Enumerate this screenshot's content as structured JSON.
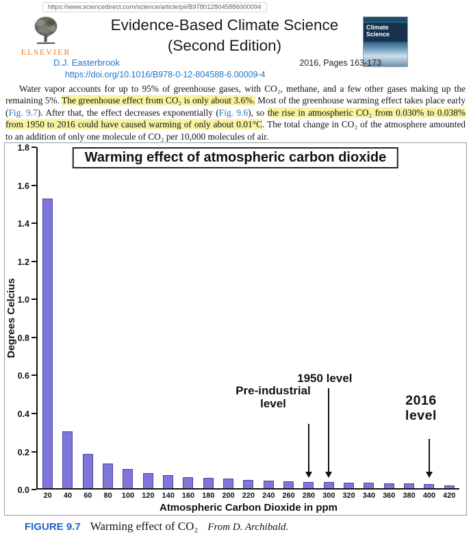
{
  "page": {
    "url": "https://www.sciencedirect.com/science/article/pii/B9780128045886000094"
  },
  "header": {
    "publisher": "ELSEVIER",
    "title": "Evidence-Based Climate Science (Second Edition)",
    "cover_title": "Climate Science",
    "author": "D.J. Easterbrook",
    "pub_info": "2016, Pages 163-173",
    "doi": "https://doi.org/10.1016/B978-0-12-804588-6.00009-4"
  },
  "paragraph": {
    "segments": [
      {
        "type": "normal",
        "text": "Water vapor accounts for up to 95% of greenhouse gases, with CO₂, methane, and a few other gases making up the remaining 5%. "
      },
      {
        "type": "highlight",
        "text": "The greenhouse effect from CO₂ is only about 3.6%."
      },
      {
        "type": "normal",
        "text": " Most of the greenhouse warming effect takes place early ("
      },
      {
        "type": "link",
        "text": "Fig. 9.7"
      },
      {
        "type": "normal",
        "text": "). After that, the effect decreases exponentially ("
      },
      {
        "type": "link",
        "text": "Fig. 9.6"
      },
      {
        "type": "normal",
        "text": "), so "
      },
      {
        "type": "highlight",
        "text": "the rise in atmospheric CO₂ from 0.030% to 0.038% from 1950 to 2016 could have caused warming of only about 0.01°C"
      },
      {
        "type": "normal",
        "text": ". The total change in CO₂ of the atmosphere amounted to an addition of only one molecule of CO₂ per 10,000 molecules of air."
      }
    ]
  },
  "chart_data": {
    "type": "bar",
    "title": "Warming effect of atmospheric carbon dioxide",
    "xlabel": "Atmospheric Carbon Dioxide in ppm",
    "ylabel": "Degrees Celcius",
    "categories": [
      20,
      40,
      60,
      80,
      100,
      120,
      140,
      160,
      180,
      200,
      220,
      240,
      260,
      280,
      300,
      320,
      340,
      360,
      380,
      400,
      420
    ],
    "values": [
      1.53,
      0.3,
      0.18,
      0.13,
      0.1,
      0.08,
      0.07,
      0.06,
      0.055,
      0.05,
      0.045,
      0.04,
      0.035,
      0.033,
      0.032,
      0.03,
      0.028,
      0.025,
      0.024,
      0.022,
      0.014
    ],
    "ylim": [
      0,
      1.8
    ],
    "ytick_step": 0.2,
    "grid": false,
    "legend": null,
    "bar_color": "#7f76d9",
    "bar_border_color": "#4a3fa8",
    "annotations": [
      {
        "label": "Pre-industrial level",
        "category": 280
      },
      {
        "label": "1950 level",
        "category": 300
      },
      {
        "label": "2016 level",
        "category": 400
      }
    ]
  },
  "caption": {
    "label": "FIGURE 9.7",
    "text": "Warming effect of CO₂",
    "attribution": "From D. Archibald."
  }
}
